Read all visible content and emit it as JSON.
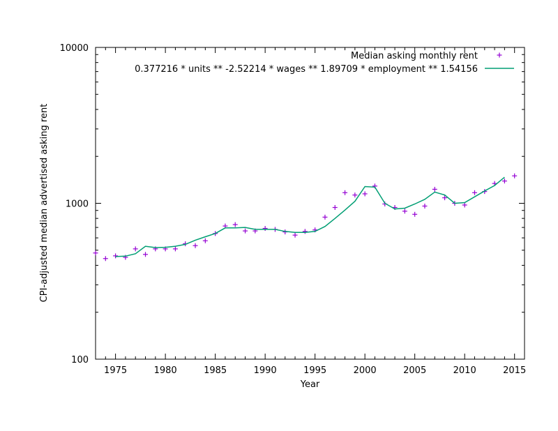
{
  "chart_data": {
    "type": "scatter",
    "xlabel": "Year",
    "ylabel": "CPI-adjusted median advertised asking rent",
    "xlim": [
      1973,
      2016
    ],
    "ylim": [
      100,
      10000
    ],
    "y_scale": "log",
    "x_ticks": [
      1975,
      1980,
      1985,
      1990,
      1995,
      2000,
      2005,
      2010,
      2015
    ],
    "x_tick_labels": [
      "1975",
      "1980",
      "1985",
      "1990",
      "1995",
      "2000",
      "2005",
      "2010",
      "2015"
    ],
    "y_ticks": [
      100,
      1000,
      10000
    ],
    "y_tick_labels": [
      "100",
      "1000",
      "10000"
    ],
    "legend_position": "top-right",
    "grid": false,
    "series": [
      {
        "name": "Median asking monthly rent",
        "kind": "points",
        "color": "#9400d3",
        "x": [
          1973,
          1974,
          1975,
          1976,
          1977,
          1978,
          1979,
          1980,
          1981,
          1982,
          1983,
          1984,
          1985,
          1986,
          1987,
          1988,
          1989,
          1990,
          1991,
          1992,
          1993,
          1994,
          1995,
          1996,
          1997,
          1998,
          1999,
          2000,
          2001,
          2002,
          2003,
          2004,
          2005,
          2006,
          2007,
          2008,
          2009,
          2010,
          2011,
          2012,
          2013,
          2014,
          2015
        ],
        "y": [
          480,
          442,
          460,
          450,
          510,
          470,
          510,
          510,
          510,
          550,
          535,
          575,
          640,
          715,
          730,
          665,
          665,
          690,
          680,
          655,
          625,
          660,
          675,
          815,
          940,
          1170,
          1130,
          1150,
          1290,
          990,
          940,
          890,
          850,
          960,
          1230,
          1085,
          1000,
          975,
          1170,
          1190,
          1340,
          1390,
          1500
        ]
      },
      {
        "name": "0.377216 * units ** -2.52214 * wages ** 1.89709 * employment ** 1.54156",
        "kind": "line",
        "color": "#009e73",
        "x": [
          1975,
          1976,
          1977,
          1978,
          1979,
          1980,
          1981,
          1982,
          1983,
          1984,
          1985,
          1986,
          1987,
          1988,
          1989,
          1990,
          1991,
          1992,
          1993,
          1994,
          1995,
          1996,
          1997,
          1998,
          1999,
          2000,
          2001,
          2002,
          2003,
          2004,
          2005,
          2006,
          2007,
          2008,
          2009,
          2010,
          2011,
          2012,
          2013,
          2014
        ],
        "y": [
          455,
          458,
          475,
          530,
          520,
          522,
          530,
          545,
          580,
          610,
          640,
          695,
          695,
          700,
          680,
          680,
          680,
          660,
          650,
          650,
          660,
          710,
          800,
          905,
          1030,
          1280,
          1270,
          1000,
          920,
          930,
          990,
          1060,
          1180,
          1130,
          1000,
          1010,
          1100,
          1200,
          1300,
          1470
        ]
      }
    ]
  }
}
